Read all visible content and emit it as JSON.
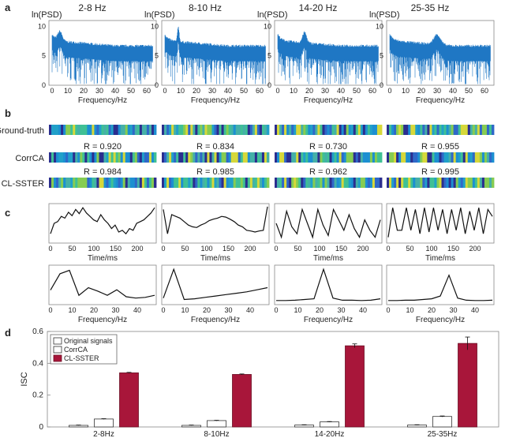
{
  "panel_labels": [
    "a",
    "b",
    "c",
    "d"
  ],
  "bands": [
    "2-8 Hz",
    "8-10 Hz",
    "14-20 Hz",
    "25-35 Hz"
  ],
  "psd": {
    "ylabel": "ln(PSD)",
    "xlabel": "Frequency/Hz",
    "yticks": [
      "10",
      "5",
      "0"
    ],
    "xticks": [
      "0",
      "10",
      "20",
      "30",
      "40",
      "50",
      "60"
    ],
    "color": "#1f77c4"
  },
  "rows": {
    "ground_truth": "Ground-truth",
    "corrca": "CorrCA",
    "clsster": "CL-SSTER"
  },
  "corr": {
    "corrca": [
      "R = 0.920",
      "R = 0.834",
      "R = 0.730",
      "R = 0.955"
    ],
    "clsster": [
      "R = 0.984",
      "R = 0.985",
      "R = 0.962",
      "R = 0.995"
    ]
  },
  "panel_c": {
    "time_xlabel": "Time/ms",
    "freq_xlabel": "Frequency/Hz",
    "time_ticks": [
      "0",
      "50",
      "100",
      "150",
      "200"
    ],
    "freq_ticks": [
      "0",
      "10",
      "20",
      "30",
      "40"
    ]
  },
  "chart_data": {
    "type": "bar",
    "title": "",
    "xlabel": "",
    "ylabel": "ISC",
    "ylim": [
      0,
      0.6
    ],
    "yticks": [
      "0",
      "0.2",
      "0.4",
      "0.6"
    ],
    "categories": [
      "2-8Hz",
      "8-10Hz",
      "14-20Hz",
      "25-35Hz"
    ],
    "series": [
      {
        "name": "Original signals",
        "values": [
          0.01,
          0.01,
          0.012,
          0.012
        ],
        "errors": [
          0.002,
          0.002,
          0.002,
          0.002
        ],
        "color": "#ffffff"
      },
      {
        "name": "CorrCA",
        "values": [
          0.05,
          0.04,
          0.032,
          0.066
        ],
        "errors": [
          0.002,
          0.002,
          0.002,
          0.003
        ],
        "color": "#ffffff"
      },
      {
        "name": "CL-SSTER",
        "values": [
          0.34,
          0.33,
          0.51,
          0.525
        ],
        "errors": [
          0.003,
          0.003,
          0.012,
          0.04
        ],
        "color": "#a8163a"
      }
    ],
    "legend_position": "top-left"
  }
}
